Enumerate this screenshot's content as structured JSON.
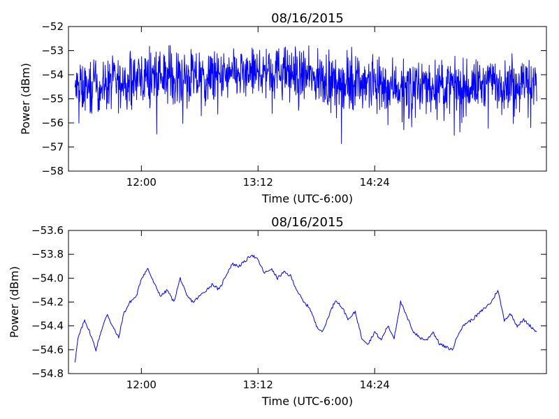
{
  "chart_data": [
    {
      "type": "line",
      "title": "08/16/2015",
      "xlabel": "Time (UTC-6:00)",
      "ylabel": "Power (dBm)",
      "xlim": [
        "11:15",
        "16:10"
      ],
      "ylim": [
        -58,
        -52
      ],
      "x_ticks": [
        "12:00",
        "13:12",
        "14:24"
      ],
      "y_ticks": [
        -58,
        -57,
        -56,
        -55,
        -54,
        -53,
        -52
      ],
      "grid": false,
      "series": [
        {
          "color": "#0000ff",
          "x": [
            "11:19",
            "11:34",
            "11:49",
            "12:04",
            "12:19",
            "12:34",
            "12:49",
            "13:04",
            "13:19",
            "13:34",
            "13:49",
            "14:04",
            "14:19",
            "14:34",
            "14:49",
            "15:04",
            "15:19",
            "15:34",
            "15:49",
            "16:04"
          ],
          "values": [
            -54.62,
            -54.48,
            -54.3,
            -54.02,
            -54.08,
            -54.17,
            -54.14,
            -53.96,
            -53.82,
            -53.95,
            -54.18,
            -54.3,
            -54.22,
            -54.45,
            -54.52,
            -54.42,
            -54.55,
            -54.34,
            -54.25,
            -54.42
          ],
          "noise_amplitude": 1.1
        }
      ]
    },
    {
      "type": "line",
      "title": "08/16/2015",
      "xlabel": "Time (UTC-6:00)",
      "ylabel": "Power (dBm)",
      "xlim": [
        "11:15",
        "16:10"
      ],
      "ylim": [
        -54.8,
        -53.6
      ],
      "x_ticks": [
        "12:00",
        "13:12",
        "14:24"
      ],
      "y_ticks": [
        -54.8,
        -54.6,
        -54.4,
        -54.2,
        -54.0,
        -53.8,
        -53.6
      ],
      "grid": false,
      "series": [
        {
          "color": "#0000ff",
          "x": [
            "11:19",
            "11:21",
            "11:25",
            "11:28",
            "11:32",
            "11:35",
            "11:39",
            "11:42",
            "11:46",
            "11:49",
            "11:53",
            "11:57",
            "12:00",
            "12:04",
            "12:08",
            "12:12",
            "12:16",
            "12:20",
            "12:24",
            "12:28",
            "12:32",
            "12:36",
            "12:40",
            "12:44",
            "12:48",
            "12:52",
            "12:56",
            "13:00",
            "13:04",
            "13:08",
            "13:12",
            "13:16",
            "13:20",
            "13:24",
            "13:28",
            "13:32",
            "13:36",
            "13:40",
            "13:44",
            "13:48",
            "13:52",
            "13:56",
            "14:00",
            "14:04",
            "14:08",
            "14:12",
            "14:16",
            "14:20",
            "14:24",
            "14:28",
            "14:32",
            "14:36",
            "14:40",
            "14:44",
            "14:48",
            "14:52",
            "14:56",
            "15:00",
            "15:04",
            "15:08",
            "15:12",
            "15:16",
            "15:20",
            "15:24",
            "15:28",
            "15:32",
            "15:36",
            "15:40",
            "15:44",
            "15:48",
            "15:52",
            "15:56",
            "16:00",
            "16:04"
          ],
          "values": [
            -54.7,
            -54.5,
            -54.35,
            -54.45,
            -54.6,
            -54.45,
            -54.3,
            -54.4,
            -54.5,
            -54.3,
            -54.2,
            -54.15,
            -54.0,
            -53.92,
            -54.05,
            -54.15,
            -54.1,
            -54.2,
            -54.0,
            -54.15,
            -54.2,
            -54.15,
            -54.1,
            -54.05,
            -54.1,
            -53.98,
            -53.88,
            -53.9,
            -53.86,
            -53.8,
            -53.85,
            -53.96,
            -53.92,
            -54.0,
            -53.95,
            -53.98,
            -54.1,
            -54.2,
            -54.25,
            -54.4,
            -54.45,
            -54.3,
            -54.18,
            -54.25,
            -54.35,
            -54.28,
            -54.5,
            -54.55,
            -54.45,
            -54.52,
            -54.4,
            -54.5,
            -54.2,
            -54.33,
            -54.45,
            -54.5,
            -54.52,
            -54.45,
            -54.55,
            -54.58,
            -54.6,
            -54.45,
            -54.38,
            -54.35,
            -54.3,
            -54.25,
            -54.2,
            -54.1,
            -54.35,
            -54.3,
            -54.4,
            -54.35,
            -54.4,
            -54.45
          ]
        }
      ]
    }
  ]
}
